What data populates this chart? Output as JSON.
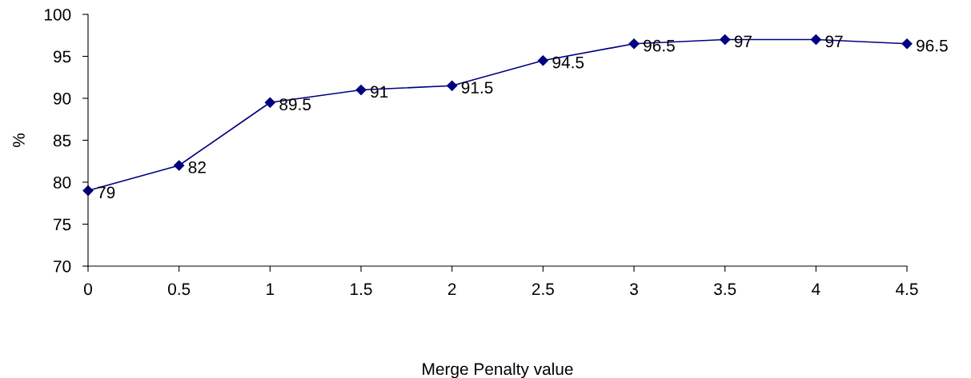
{
  "chart_data": {
    "type": "line",
    "xlabel": "Merge Penalty value",
    "ylabel": "%",
    "x": [
      0,
      0.5,
      1,
      1.5,
      2,
      2.5,
      3,
      3.5,
      4,
      4.5
    ],
    "series": [
      {
        "color": "#000080",
        "values": [
          79,
          82,
          89.5,
          91,
          91.5,
          94.5,
          96.5,
          97,
          97,
          96.5
        ]
      }
    ],
    "xlim": [
      0,
      4.5
    ],
    "xticks": [
      0,
      0.5,
      1,
      1.5,
      2,
      2.5,
      3,
      3.5,
      4,
      4.5
    ],
    "ylim": [
      70,
      100
    ],
    "yticks": [
      70,
      75,
      80,
      85,
      90,
      95,
      100
    ],
    "marker": "diamond",
    "line_style": "solid",
    "data_labels": true,
    "grid": false,
    "legend": false
  }
}
